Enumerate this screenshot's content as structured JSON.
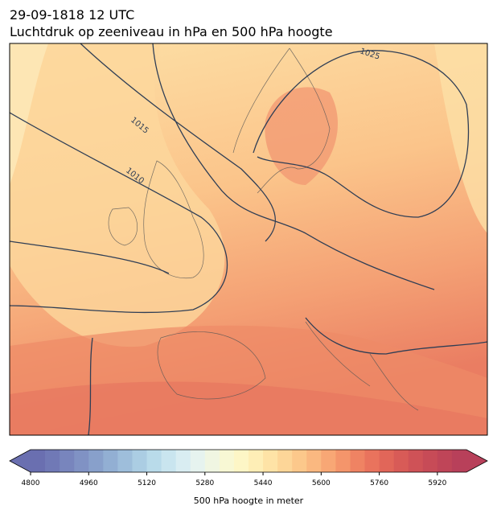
{
  "header": {
    "title_line1": "29-09-1818 12 UTC",
    "title_line2": "Luchtdruk op zeeniveau in hPa en 500 hPa hoogte"
  },
  "map": {
    "contour_labels": [
      "1025",
      "1015",
      "1010"
    ]
  },
  "colorbar": {
    "label": "500 hPa hoogte in meter",
    "lim": [
      4800,
      6000
    ],
    "ticks": [
      4800,
      4960,
      5120,
      5280,
      5440,
      5600,
      5760,
      5920
    ],
    "colors": [
      "#6a6fb0",
      "#7079b6",
      "#7885bd",
      "#8092c4",
      "#88a0cb",
      "#92afd3",
      "#9ebedb",
      "#abcde3",
      "#b9dbea",
      "#c9e5ef",
      "#d9edf2",
      "#e6f3ef",
      "#f0f6e2",
      "#f8f8d4",
      "#fdf6c6",
      "#feeeb6",
      "#fee3a6",
      "#fdd698",
      "#fcc88b",
      "#fab880",
      "#f8a775",
      "#f4956b",
      "#ef8363",
      "#e9735d",
      "#e16659",
      "#d85b57",
      "#cf5257",
      "#c74b57",
      "#bf4558",
      "#b8405a"
    ]
  }
}
